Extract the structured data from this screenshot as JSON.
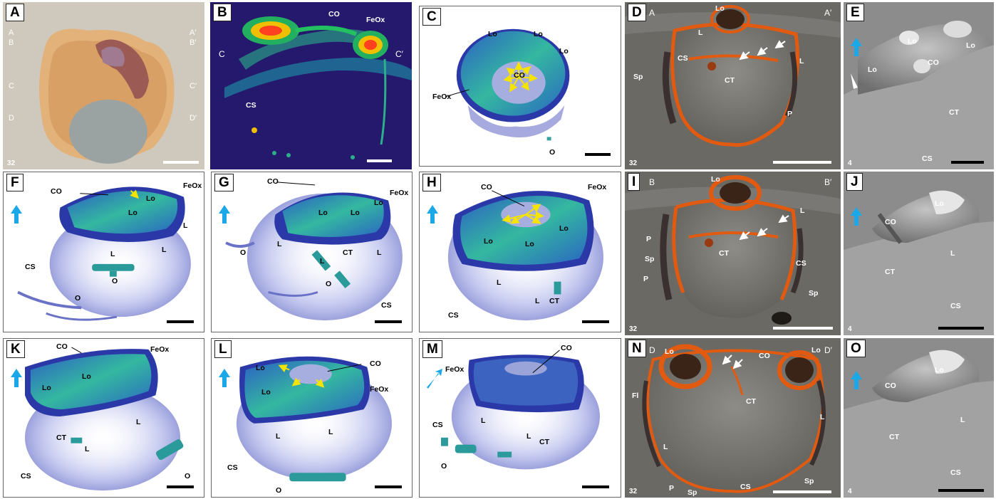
{
  "colors": {
    "fluor_dark": "#2a2f8a",
    "fluor_green": "#3fd08a",
    "oxide_orange": "#e25a10",
    "arrow_yellow": "#f5e400",
    "arrow_blue": "#1aa8e8",
    "sem_gray": "#9a9a9a"
  },
  "icons": {
    "orientation_arrow": "arrow-icon",
    "direction_arrow": "arrow-icon"
  },
  "panels": {
    "A": {
      "label": "A",
      "mag": "32",
      "labels": {
        "a": "A",
        "ap": "A′",
        "b": "B",
        "bp": "B′",
        "c": "C",
        "cp": "C′",
        "d": "D",
        "dp": "D′"
      }
    },
    "B": {
      "label": "B",
      "labels": {
        "co": "CO",
        "feox": "FeOx",
        "c": "C",
        "cp": "C′",
        "cs": "CS"
      }
    },
    "C": {
      "label": "C",
      "labels": {
        "lo1": "Lo",
        "lo2": "Lo",
        "lo3": "Lo",
        "co": "CO",
        "feox": "FeOx",
        "o": "O"
      }
    },
    "D": {
      "label": "D",
      "mag": "32",
      "labels": {
        "a": "A",
        "ap": "A′",
        "lo": "Lo",
        "l1": "L",
        "l2": "L",
        "cs": "CS",
        "sp": "Sp",
        "ct": "CT",
        "p": "P"
      }
    },
    "E": {
      "label": "E",
      "mag": "4",
      "labels": {
        "lo1": "Lo",
        "lo2": "Lo",
        "lo3": "Lo",
        "co": "CO",
        "ct": "CT",
        "cs": "CS"
      }
    },
    "F": {
      "label": "F",
      "labels": {
        "co": "CO",
        "feox": "FeOx",
        "lo1": "Lo",
        "lo2": "Lo",
        "l1": "L",
        "l2": "L",
        "l3": "L",
        "cs": "CS",
        "o1": "O",
        "o2": "O"
      }
    },
    "G": {
      "label": "G",
      "labels": {
        "co": "CO",
        "feox": "FeOx",
        "lo1": "Lo",
        "lo2": "Lo",
        "lo3": "Lo",
        "l1": "L",
        "l2": "L",
        "l3": "L",
        "o1": "O",
        "o2": "O",
        "ct": "CT",
        "cs": "CS"
      }
    },
    "H": {
      "label": "H",
      "labels": {
        "co": "CO",
        "feox": "FeOx",
        "lo1": "Lo",
        "lo2": "Lo",
        "lo3": "Lo",
        "l1": "L",
        "l2": "L",
        "ct": "CT",
        "cs": "CS"
      }
    },
    "I": {
      "label": "I",
      "mag": "32",
      "labels": {
        "b": "B",
        "bp": "B′",
        "lo": "Lo",
        "l": "L",
        "ct": "CT",
        "p1": "P",
        "p2": "P",
        "sp1": "Sp",
        "sp2": "Sp",
        "cs": "CS"
      }
    },
    "J": {
      "label": "J",
      "mag": "4",
      "labels": {
        "lo": "Lo",
        "co": "CO",
        "ct": "CT",
        "l": "L",
        "cs": "CS"
      }
    },
    "K": {
      "label": "K",
      "labels": {
        "co": "CO",
        "feox": "FeOx",
        "lo1": "Lo",
        "lo2": "Lo",
        "l1": "L",
        "l2": "L",
        "ct": "CT",
        "cs": "CS",
        "o": "O"
      }
    },
    "L": {
      "label": "L",
      "labels": {
        "co": "CO",
        "feox": "FeOx",
        "lo1": "Lo",
        "lo2": "Lo",
        "l1": "L",
        "l2": "L",
        "cs": "CS",
        "o": "O"
      }
    },
    "M": {
      "label": "M",
      "labels": {
        "co": "CO",
        "feox": "FeOx",
        "l1": "L",
        "l2": "L",
        "ct": "CT",
        "cs": "CS",
        "o": "O"
      }
    },
    "N": {
      "label": "N",
      "mag": "32",
      "labels": {
        "d": "D",
        "dp": "D′",
        "lo1": "Lo",
        "lo2": "Lo",
        "co": "CO",
        "ct": "CT",
        "fl": "Fl",
        "l1": "L",
        "l2": "L",
        "p": "P",
        "sp1": "Sp",
        "sp2": "Sp",
        "cs": "CS"
      }
    },
    "O": {
      "label": "O",
      "mag": "4",
      "labels": {
        "lo": "Lo",
        "co": "CO",
        "ct": "CT",
        "l": "L",
        "cs": "CS"
      }
    }
  }
}
